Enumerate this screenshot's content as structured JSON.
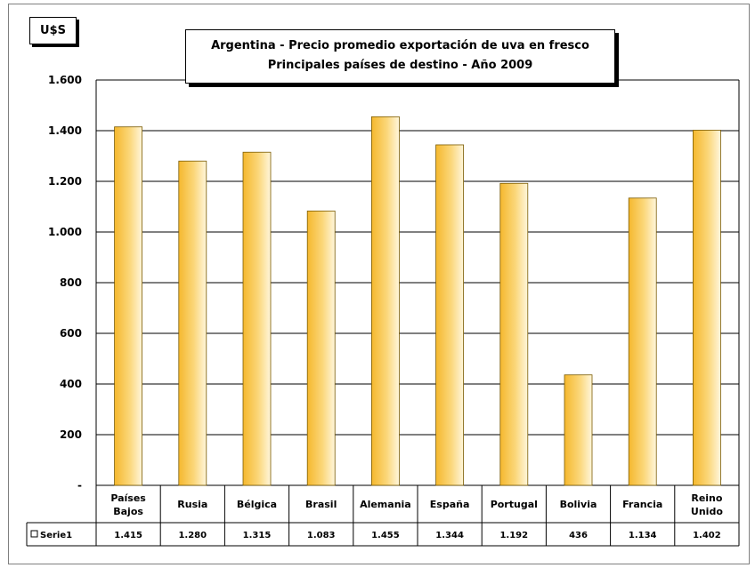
{
  "unit_label": "U$S",
  "chart_data": {
    "type": "bar",
    "title": "Argentina - Precio promedio exportación de uva en fresco",
    "subtitle": "Principales países de destino - Año 2009",
    "ylabel": "U$S",
    "ylim": [
      0,
      1600
    ],
    "y_tick_values": [
      0,
      200,
      400,
      600,
      800,
      1000,
      1200,
      1400,
      1600
    ],
    "y_tick_labels": [
      "-",
      "200",
      "400",
      "600",
      "800",
      "1.000",
      "1.200",
      "1.400",
      "1.600"
    ],
    "categories": [
      [
        "Países",
        "Bajos"
      ],
      [
        "Rusia"
      ],
      [
        "Bélgica"
      ],
      [
        "Brasil"
      ],
      [
        "Alemania"
      ],
      [
        "España"
      ],
      [
        "Portugal"
      ],
      [
        "Bolivia"
      ],
      [
        "Francia"
      ],
      [
        "Reino",
        "Unido"
      ]
    ],
    "series": [
      {
        "name": "Serie1",
        "values": [
          1415,
          1280,
          1315,
          1083,
          1455,
          1344,
          1192,
          436,
          1134,
          1402
        ],
        "value_labels": [
          "1.415",
          "1.280",
          "1.315",
          "1.083",
          "1.455",
          "1.344",
          "1.192",
          "436",
          "1.134",
          "1.402"
        ],
        "color": "#f5b82e"
      }
    ],
    "grid": true,
    "legend": "data-table"
  }
}
